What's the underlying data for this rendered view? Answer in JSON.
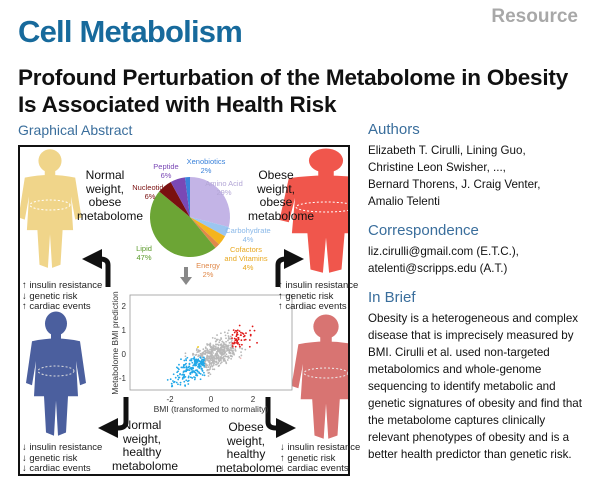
{
  "header": {
    "journal": "Cell Metabolism",
    "article_type": "Resource"
  },
  "title": {
    "line1": "Profound Perturbation of the Metabolome in Obesity",
    "line2": "Is Associated with Health Risk"
  },
  "graphical_abstract": {
    "heading": "Graphical Abstract",
    "pie": {
      "slices": [
        {
          "label": "Amino Acid",
          "pct": "29%",
          "value": 29,
          "color": "#c3b4e6"
        },
        {
          "label": "Carbohydrate",
          "pct": "4%",
          "value": 4,
          "color": "#9cc6f0"
        },
        {
          "label": "Cofactors and Vitamins",
          "pct": "4%",
          "value": 4,
          "color": "#f4b41e"
        },
        {
          "label": "Energy",
          "pct": "2%",
          "value": 2,
          "color": "#e0894a"
        },
        {
          "label": "Lipid",
          "pct": "47%",
          "value": 47,
          "color": "#6ca535"
        },
        {
          "label": "Nucleotide",
          "pct": "6%",
          "value": 6,
          "color": "#7a1010"
        },
        {
          "label": "Peptide",
          "pct": "6%",
          "value": 6,
          "color": "#7a48b5"
        },
        {
          "label": "Xenobiotics",
          "pct": "2%",
          "value": 2,
          "color": "#3a82da"
        }
      ]
    },
    "groups": {
      "top_left": {
        "l1": "Normal",
        "l2": "weight,",
        "l3": "obese",
        "l4": "metabolome",
        "risks": [
          "↑ insulin resistance",
          "↓ genetic risk",
          "↑ cardiac events"
        ],
        "color": "#f0d58a"
      },
      "top_right": {
        "l1": "Obese",
        "l2": "weight,",
        "l3": "obese",
        "l4": "metabolome",
        "risks": [
          "↑ insulin resistance",
          "↑ genetic risk",
          "↑ cardiac events"
        ],
        "color": "#f0564c"
      },
      "bottom_left": {
        "l1": "Normal",
        "l2": "weight,",
        "l3": "healthy",
        "l4": "metabolome",
        "risks": [
          "↓ insulin resistance",
          "↓ genetic risk",
          "↓ cardiac events"
        ],
        "color": "#4b5f9e"
      },
      "bottom_right": {
        "l1": "Obese",
        "l2": "weight,",
        "l3": "healthy",
        "l4": "metabolome",
        "risks": [
          "↓ insulin resistance",
          "↑ genetic risk",
          "↓ cardiac events"
        ],
        "color": "#d87472"
      }
    },
    "scatter": {
      "xlabel": "BMI (transformed to normality)",
      "ylabel": "Metabolome BMI prediction",
      "xticks": [
        "-2",
        "0",
        "2"
      ],
      "yticks": [
        "2",
        "1",
        "0",
        "-1"
      ],
      "cluster_colors": {
        "normal_obese": "#f2d23a",
        "obese_obese": "#e01818",
        "normal_healthy": "#22a8e8",
        "other": "#b8b8b8",
        "obese_healthy": "#f0b8b8"
      }
    }
  },
  "sidebar": {
    "authors_heading": "Authors",
    "authors": [
      "Elizabeth T. Cirulli, Lining Guo,",
      "Christine Leon Swisher, ...,",
      "Bernard Thorens, J. Craig Venter,",
      "Amalio Telenti"
    ],
    "correspondence_heading": "Correspondence",
    "correspondence": [
      "liz.cirulli@gmail.com (E.T.C.),",
      "atelenti@scripps.edu (A.T.)"
    ],
    "in_brief_heading": "In Brief",
    "in_brief": [
      "Obesity is a heterogeneous and complex",
      "disease that is imprecisely measured by",
      "BMI. Cirulli et al. used non-targeted",
      "metabolomics and whole-genome",
      "sequencing to identify metabolic and",
      "genetic signatures of obesity and find that",
      "the metabolome captures clinically",
      "relevant phenotypes of obesity and is a",
      "better health predictor than genetic risk."
    ]
  }
}
